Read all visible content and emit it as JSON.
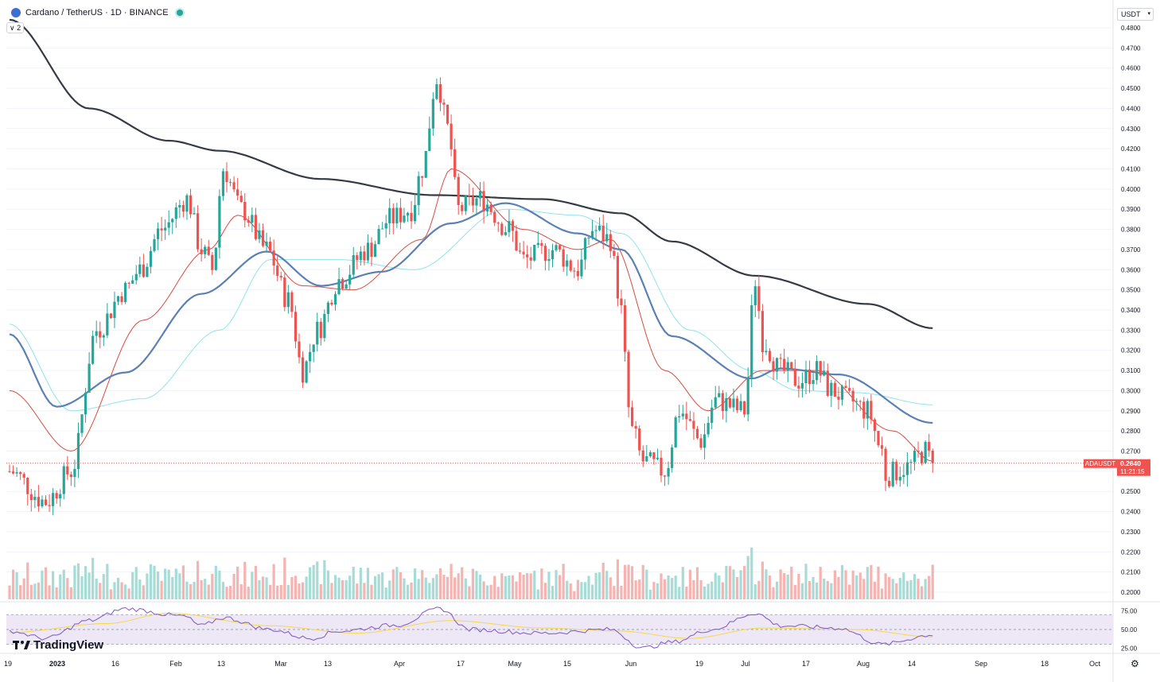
{
  "header": {
    "symbol": "Cardano / TetherUS · 1D · BINANCE",
    "indicator_count": "2",
    "currency": "USDT"
  },
  "price_label": {
    "ticker": "ADAUSDT",
    "price": "0.2640",
    "countdown": "11:21:15"
  },
  "branding": {
    "name": "TradingView"
  },
  "icons": [
    "cardano-logo-icon",
    "live-status-icon",
    "chevron-down-icon",
    "tradingview-logo-icon",
    "gear-icon"
  ],
  "colors": {
    "up": "#26a69a",
    "down": "#ef5350",
    "up_volume": "#a7dcd6",
    "down_volume": "#f5b3b1",
    "ma200": "#363a45",
    "ma50": "#5b80b4",
    "ma20": "#d84b3e",
    "ma_cyan": "#8fe3ef",
    "rsi_line": "#7e57c2",
    "rsi_ma": "#f5d94b",
    "rsi_band": "#ede7f6"
  },
  "chart_data": {
    "type": "candlestick",
    "y_axis": {
      "ticks": [
        "0.4800",
        "0.4700",
        "0.4600",
        "0.4500",
        "0.4400",
        "0.4300",
        "0.4200",
        "0.4100",
        "0.4000",
        "0.3900",
        "0.3800",
        "0.3700",
        "0.3600",
        "0.3500",
        "0.3400",
        "0.3300",
        "0.3200",
        "0.3100",
        "0.3000",
        "0.2900",
        "0.2800",
        "0.2700",
        "0.2600",
        "0.2500",
        "0.2400",
        "0.2300",
        "0.2200",
        "0.2100",
        "0.2000"
      ],
      "range": [
        0.2,
        0.48
      ],
      "current_price": 0.264
    },
    "x_axis": {
      "ticks": [
        "19",
        "2023",
        "16",
        "Feb",
        "13",
        "Mar",
        "13",
        "Apr",
        "17",
        "May",
        "15",
        "Jun",
        "19",
        "Jul",
        "17",
        "Aug",
        "14",
        "Sep",
        "18",
        "Oct"
      ]
    },
    "ohlc_anchors": [
      [
        "2022-12-19",
        0.26
      ],
      [
        "2022-12-29",
        0.245
      ],
      [
        "2023-01-05",
        0.26
      ],
      [
        "2023-01-12",
        0.33
      ],
      [
        "2023-01-20",
        0.35
      ],
      [
        "2023-01-24",
        0.36
      ],
      [
        "2023-01-30",
        0.38
      ],
      [
        "2023-02-06",
        0.395
      ],
      [
        "2023-02-10",
        0.37
      ],
      [
        "2023-02-13",
        0.36
      ],
      [
        "2023-02-16",
        0.41
      ],
      [
        "2023-02-21",
        0.39
      ],
      [
        "2023-02-28",
        0.37
      ],
      [
        "2023-03-06",
        0.345
      ],
      [
        "2023-03-10",
        0.31
      ],
      [
        "2023-03-14",
        0.33
      ],
      [
        "2023-03-20",
        0.355
      ],
      [
        "2023-03-28",
        0.37
      ],
      [
        "2023-04-03",
        0.385
      ],
      [
        "2023-04-09",
        0.39
      ],
      [
        "2023-04-12",
        0.41
      ],
      [
        "2023-04-16",
        0.455
      ],
      [
        "2023-04-19",
        0.43
      ],
      [
        "2023-04-22",
        0.39
      ],
      [
        "2023-04-28",
        0.395
      ],
      [
        "2023-05-06",
        0.38
      ],
      [
        "2023-05-10",
        0.365
      ],
      [
        "2023-05-18",
        0.37
      ],
      [
        "2023-05-25",
        0.36
      ],
      [
        "2023-05-29",
        0.38
      ],
      [
        "2023-06-03",
        0.375
      ],
      [
        "2023-06-05",
        0.35
      ],
      [
        "2023-06-09",
        0.28
      ],
      [
        "2023-06-12",
        0.265
      ],
      [
        "2023-06-18",
        0.26
      ],
      [
        "2023-06-22",
        0.29
      ],
      [
        "2023-06-28",
        0.275
      ],
      [
        "2023-07-02",
        0.295
      ],
      [
        "2023-07-10",
        0.29
      ],
      [
        "2023-07-13",
        0.355
      ],
      [
        "2023-07-15",
        0.325
      ],
      [
        "2023-07-20",
        0.31
      ],
      [
        "2023-07-25",
        0.305
      ],
      [
        "2023-07-30",
        0.31
      ],
      [
        "2023-08-03",
        0.3
      ],
      [
        "2023-08-08",
        0.295
      ],
      [
        "2023-08-13",
        0.29
      ],
      [
        "2023-08-17",
        0.27
      ],
      [
        "2023-08-18",
        0.258
      ],
      [
        "2023-08-24",
        0.262
      ],
      [
        "2023-08-29",
        0.27
      ],
      [
        "2023-08-31",
        0.264
      ]
    ],
    "ma_200_anchors": [
      [
        "2022-12-19",
        0.484
      ],
      [
        "2023-01-10",
        0.44
      ],
      [
        "2023-02-01",
        0.424
      ],
      [
        "2023-02-15",
        0.419
      ],
      [
        "2023-03-15",
        0.405
      ],
      [
        "2023-04-15",
        0.397
      ],
      [
        "2023-05-15",
        0.395
      ],
      [
        "2023-06-06",
        0.388
      ],
      [
        "2023-06-20",
        0.374
      ],
      [
        "2023-07-13",
        0.357
      ],
      [
        "2023-08-13",
        0.343
      ],
      [
        "2023-08-31",
        0.331
      ]
    ],
    "ma_50_anchors": [
      [
        "2022-12-19",
        0.328
      ],
      [
        "2023-01-01",
        0.292
      ],
      [
        "2023-01-20",
        0.309
      ],
      [
        "2023-02-10",
        0.348
      ],
      [
        "2023-02-28",
        0.369
      ],
      [
        "2023-03-15",
        0.352
      ],
      [
        "2023-04-01",
        0.359
      ],
      [
        "2023-04-20",
        0.383
      ],
      [
        "2023-05-05",
        0.393
      ],
      [
        "2023-05-25",
        0.378
      ],
      [
        "2023-06-06",
        0.37
      ],
      [
        "2023-06-20",
        0.327
      ],
      [
        "2023-07-12",
        0.306
      ],
      [
        "2023-07-20",
        0.311
      ],
      [
        "2023-08-05",
        0.308
      ],
      [
        "2023-08-31",
        0.284
      ]
    ],
    "ma_20_anchors": [
      [
        "2022-12-19",
        0.3
      ],
      [
        "2023-01-05",
        0.27
      ],
      [
        "2023-01-25",
        0.335
      ],
      [
        "2023-02-12",
        0.37
      ],
      [
        "2023-02-20",
        0.387
      ],
      [
        "2023-03-10",
        0.352
      ],
      [
        "2023-03-24",
        0.35
      ],
      [
        "2023-04-12",
        0.375
      ],
      [
        "2023-04-20",
        0.41
      ],
      [
        "2023-05-10",
        0.38
      ],
      [
        "2023-05-25",
        0.37
      ],
      [
        "2023-06-03",
        0.375
      ],
      [
        "2023-06-18",
        0.31
      ],
      [
        "2023-06-30",
        0.29
      ],
      [
        "2023-07-15",
        0.31
      ],
      [
        "2023-07-30",
        0.31
      ],
      [
        "2023-08-20",
        0.28
      ],
      [
        "2023-08-31",
        0.265
      ]
    ],
    "ma_cyan_anchors": [
      [
        "2022-12-19",
        0.333
      ],
      [
        "2023-01-05",
        0.29
      ],
      [
        "2023-01-25",
        0.296
      ],
      [
        "2023-02-15",
        0.33
      ],
      [
        "2023-03-01",
        0.365
      ],
      [
        "2023-03-20",
        0.365
      ],
      [
        "2023-04-10",
        0.36
      ],
      [
        "2023-05-05",
        0.39
      ],
      [
        "2023-05-25",
        0.387
      ],
      [
        "2023-06-06",
        0.378
      ],
      [
        "2023-06-25",
        0.33
      ],
      [
        "2023-07-12",
        0.31
      ],
      [
        "2023-07-25",
        0.3
      ],
      [
        "2023-08-10",
        0.299
      ],
      [
        "2023-08-31",
        0.293
      ]
    ],
    "rsi": {
      "ticks": [
        "75.00",
        "50.00",
        "25.00"
      ],
      "range": [
        20,
        82
      ],
      "band": [
        30,
        70
      ],
      "anchors": [
        [
          "2022-12-19",
          48
        ],
        [
          "2022-12-29",
          38
        ],
        [
          "2023-01-10",
          62
        ],
        [
          "2023-01-20",
          78
        ],
        [
          "2023-02-05",
          68
        ],
        [
          "2023-02-10",
          55
        ],
        [
          "2023-02-16",
          66
        ],
        [
          "2023-03-01",
          50
        ],
        [
          "2023-03-12",
          38
        ],
        [
          "2023-03-20",
          48
        ],
        [
          "2023-04-05",
          56
        ],
        [
          "2023-04-17",
          78
        ],
        [
          "2023-04-25",
          50
        ],
        [
          "2023-05-15",
          45
        ],
        [
          "2023-06-03",
          50
        ],
        [
          "2023-06-12",
          25
        ],
        [
          "2023-06-20",
          33
        ],
        [
          "2023-07-01",
          50
        ],
        [
          "2023-07-13",
          72
        ],
        [
          "2023-07-20",
          55
        ],
        [
          "2023-08-05",
          52
        ],
        [
          "2023-08-17",
          30
        ],
        [
          "2023-08-31",
          43
        ]
      ],
      "ma_anchors": [
        [
          "2022-12-19",
          46
        ],
        [
          "2023-01-15",
          58
        ],
        [
          "2023-02-01",
          72
        ],
        [
          "2023-03-01",
          55
        ],
        [
          "2023-03-25",
          45
        ],
        [
          "2023-04-20",
          62
        ],
        [
          "2023-05-15",
          52
        ],
        [
          "2023-06-05",
          48
        ],
        [
          "2023-06-25",
          38
        ],
        [
          "2023-07-15",
          52
        ],
        [
          "2023-08-10",
          50
        ],
        [
          "2023-08-31",
          40
        ]
      ]
    }
  }
}
